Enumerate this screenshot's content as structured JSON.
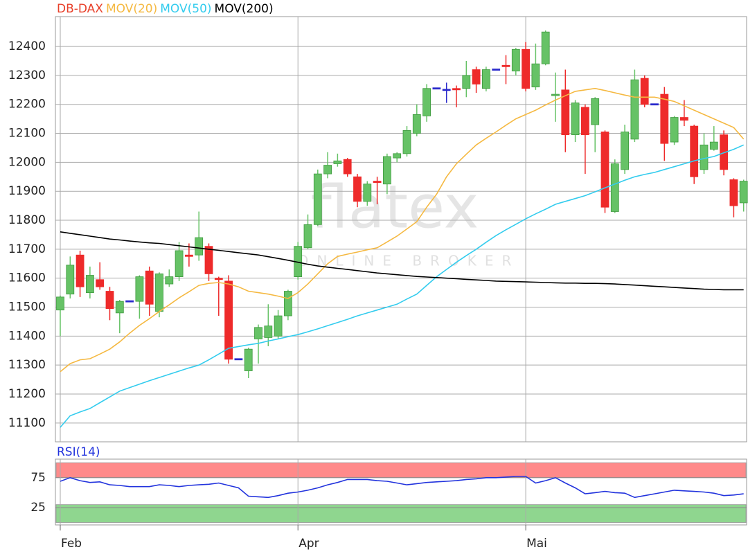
{
  "watermark": {
    "brand": "flatex",
    "tagline": "ONLINE BROKER"
  },
  "chart_data": [
    {
      "type": "candlestick",
      "title": "DB-DAX",
      "title_color": "#e8402a",
      "up_color": "#66c266",
      "down_color": "#ee2a2a",
      "doji_color": "#2a2acc",
      "categories": [
        "Feb",
        null,
        null,
        null,
        null,
        null,
        null,
        null,
        null,
        null,
        null,
        null,
        null,
        null,
        null,
        null,
        null,
        null,
        null,
        null,
        null,
        null,
        null,
        null,
        "Apr",
        null,
        null,
        null,
        null,
        null,
        null,
        null,
        null,
        null,
        null,
        null,
        null,
        null,
        null,
        null,
        null,
        null,
        null,
        null,
        null,
        null,
        null,
        "Mai",
        null,
        null,
        null,
        null,
        null,
        null,
        null,
        null,
        null,
        null,
        null,
        null,
        null,
        null,
        null,
        null,
        null,
        null,
        null,
        null,
        null,
        null
      ],
      "open": [
        11490,
        11545,
        11680,
        11550,
        11595,
        11555,
        11480,
        11520,
        11520,
        11625,
        11485,
        11580,
        11605,
        11680,
        11680,
        11710,
        11600,
        11590,
        11320,
        11280,
        11390,
        11395,
        11400,
        11470,
        11605,
        11705,
        11785,
        11960,
        11995,
        12010,
        11950,
        11865,
        11935,
        11925,
        12015,
        12030,
        12100,
        12160,
        12255,
        12250,
        12255,
        12255,
        12320,
        12255,
        12320,
        12335,
        12315,
        12390,
        12260,
        12340,
        12230,
        12250,
        12095,
        12190,
        12130,
        12105,
        11830,
        11975,
        12080,
        12290,
        12200,
        12235,
        12070,
        12155,
        12125,
        11975,
        12045,
        12095,
        11940,
        11860
      ],
      "high": [
        11540,
        11675,
        11695,
        11640,
        11655,
        11570,
        11525,
        11520,
        11610,
        11640,
        11620,
        11630,
        11725,
        11720,
        11830,
        11720,
        11605,
        11610,
        11320,
        11360,
        11440,
        11510,
        11490,
        11560,
        11725,
        11820,
        11975,
        12035,
        12030,
        12015,
        11960,
        11935,
        11950,
        12030,
        12035,
        12125,
        12200,
        12270,
        12255,
        12275,
        12265,
        12350,
        12330,
        12330,
        12320,
        12370,
        12395,
        12415,
        12410,
        12455,
        12310,
        12320,
        12215,
        12200,
        12225,
        12110,
        12010,
        12130,
        12320,
        12300,
        12200,
        12260,
        12160,
        12215,
        12130,
        12100,
        12125,
        12110,
        11945,
        11940
      ],
      "low": [
        11400,
        11530,
        11535,
        11530,
        11560,
        11455,
        11410,
        11520,
        11460,
        11470,
        11465,
        11570,
        11590,
        11640,
        11660,
        11590,
        11470,
        11305,
        11320,
        11255,
        11305,
        11365,
        11390,
        11455,
        11595,
        11700,
        11780,
        11945,
        11985,
        11950,
        11845,
        11850,
        11855,
        11890,
        12000,
        12020,
        12090,
        12140,
        12255,
        12205,
        12190,
        12225,
        12240,
        12245,
        12320,
        12270,
        12300,
        12245,
        12250,
        12335,
        12140,
        12035,
        12070,
        11960,
        12035,
        11825,
        11825,
        11960,
        12070,
        12190,
        12200,
        12005,
        12060,
        12125,
        11925,
        11960,
        12040,
        11955,
        11810,
        11830
      ],
      "close": [
        11535,
        11645,
        11570,
        11610,
        11570,
        11495,
        11520,
        11520,
        11605,
        11510,
        11615,
        11605,
        11695,
        11675,
        11740,
        11615,
        11595,
        11320,
        11320,
        11355,
        11430,
        11435,
        11470,
        11555,
        11710,
        11785,
        11960,
        11990,
        12005,
        11960,
        11865,
        11925,
        11930,
        12020,
        12030,
        12110,
        12165,
        12255,
        12255,
        12250,
        12250,
        12300,
        12270,
        12320,
        12320,
        12330,
        12390,
        12255,
        12340,
        12450,
        12235,
        12095,
        12205,
        12095,
        12220,
        11845,
        11995,
        12105,
        12285,
        12200,
        12200,
        12065,
        12155,
        12145,
        11950,
        12060,
        12070,
        11975,
        11850,
        11935
      ],
      "series": [
        {
          "name": "MOV(20)",
          "color": "#f5b942",
          "values": [
            11277,
            11305,
            11318,
            11322,
            11338,
            11355,
            11380,
            11410,
            11437,
            11460,
            11485,
            11508,
            11532,
            11553,
            11575,
            11582,
            11585,
            11580,
            11570,
            11555,
            11550,
            11545,
            11538,
            11530,
            11550,
            11580,
            11615,
            11650,
            11675,
            11683,
            11690,
            11698,
            11705,
            11725,
            11745,
            11770,
            11795,
            11845,
            11890,
            11950,
            11995,
            12028,
            12060,
            12083,
            12105,
            12128,
            12150,
            12165,
            12180,
            12198,
            12215,
            12230,
            12245,
            12250,
            12255,
            12248,
            12240,
            12232,
            12225,
            12225,
            12225,
            12218,
            12210,
            12195,
            12180,
            12165,
            12150,
            12135,
            12120,
            12080
          ]
        },
        {
          "name": "MOV(50)",
          "color": "#33ccee",
          "values": [
            11085,
            11125,
            11138,
            11150,
            11170,
            11190,
            11210,
            11222,
            11234,
            11246,
            11257,
            11268,
            11279,
            11290,
            11300,
            11318,
            11338,
            11358,
            11364,
            11370,
            11375,
            11383,
            11390,
            11398,
            11405,
            11415,
            11425,
            11436,
            11447,
            11458,
            11470,
            11480,
            11490,
            11500,
            11510,
            11528,
            11545,
            11575,
            11605,
            11630,
            11655,
            11678,
            11700,
            11724,
            11747,
            11767,
            11786,
            11805,
            11822,
            11838,
            11855,
            11865,
            11875,
            11885,
            11898,
            11912,
            11925,
            11938,
            11950,
            11958,
            11965,
            11975,
            11985,
            11995,
            12005,
            12013,
            12020,
            12033,
            12045,
            12060
          ]
        },
        {
          "name": "MOV(200)",
          "color": "#000000",
          "values": [
            11760,
            11755,
            11750,
            11745,
            11740,
            11735,
            11732,
            11728,
            11725,
            11722,
            11720,
            11716,
            11712,
            11708,
            11704,
            11700,
            11696,
            11692,
            11688,
            11684,
            11680,
            11674,
            11668,
            11662,
            11655,
            11648,
            11642,
            11638,
            11634,
            11630,
            11626,
            11622,
            11618,
            11615,
            11612,
            11609,
            11606,
            11604,
            11602,
            11600,
            11598,
            11596,
            11594,
            11592,
            11590,
            11589,
            11588,
            11587,
            11586,
            11585,
            11584,
            11583,
            11583,
            11582,
            11582,
            11581,
            11580,
            11578,
            11576,
            11574,
            11572,
            11570,
            11568,
            11566,
            11564,
            11562,
            11561,
            11560,
            11560,
            11560
          ]
        }
      ],
      "ylim": [
        11035,
        12503
      ],
      "yticks": [
        11100,
        11200,
        11300,
        11400,
        11500,
        11600,
        11700,
        11800,
        11900,
        12000,
        12100,
        12200,
        12300,
        12400
      ],
      "grid": true
    },
    {
      "type": "line",
      "series": [
        {
          "name": "RSI(14)",
          "color": "#2233dd",
          "values": [
            69,
            75,
            70,
            67,
            68,
            63,
            62,
            60,
            60,
            60,
            63,
            62,
            60,
            62,
            63,
            64,
            66,
            62,
            58,
            44,
            43,
            42,
            45,
            49,
            51,
            54,
            58,
            63,
            67,
            72,
            72,
            72,
            70,
            69,
            66,
            63,
            65,
            67,
            68,
            69,
            70,
            72,
            73,
            75,
            75,
            76,
            77,
            77,
            66,
            70,
            75,
            66,
            58,
            48,
            50,
            52,
            50,
            49,
            42,
            45,
            48,
            51,
            54,
            53,
            52,
            51,
            49,
            45,
            46,
            48
          ]
        }
      ],
      "bands": [
        {
          "range": [
            75,
            100
          ],
          "color": "#ff8a8a"
        },
        {
          "range": [
            0,
            30
          ],
          "color": "#8fd68f"
        }
      ],
      "ylim": [
        -4,
        106
      ],
      "yticks": [
        25,
        75
      ],
      "grid": true
    }
  ]
}
